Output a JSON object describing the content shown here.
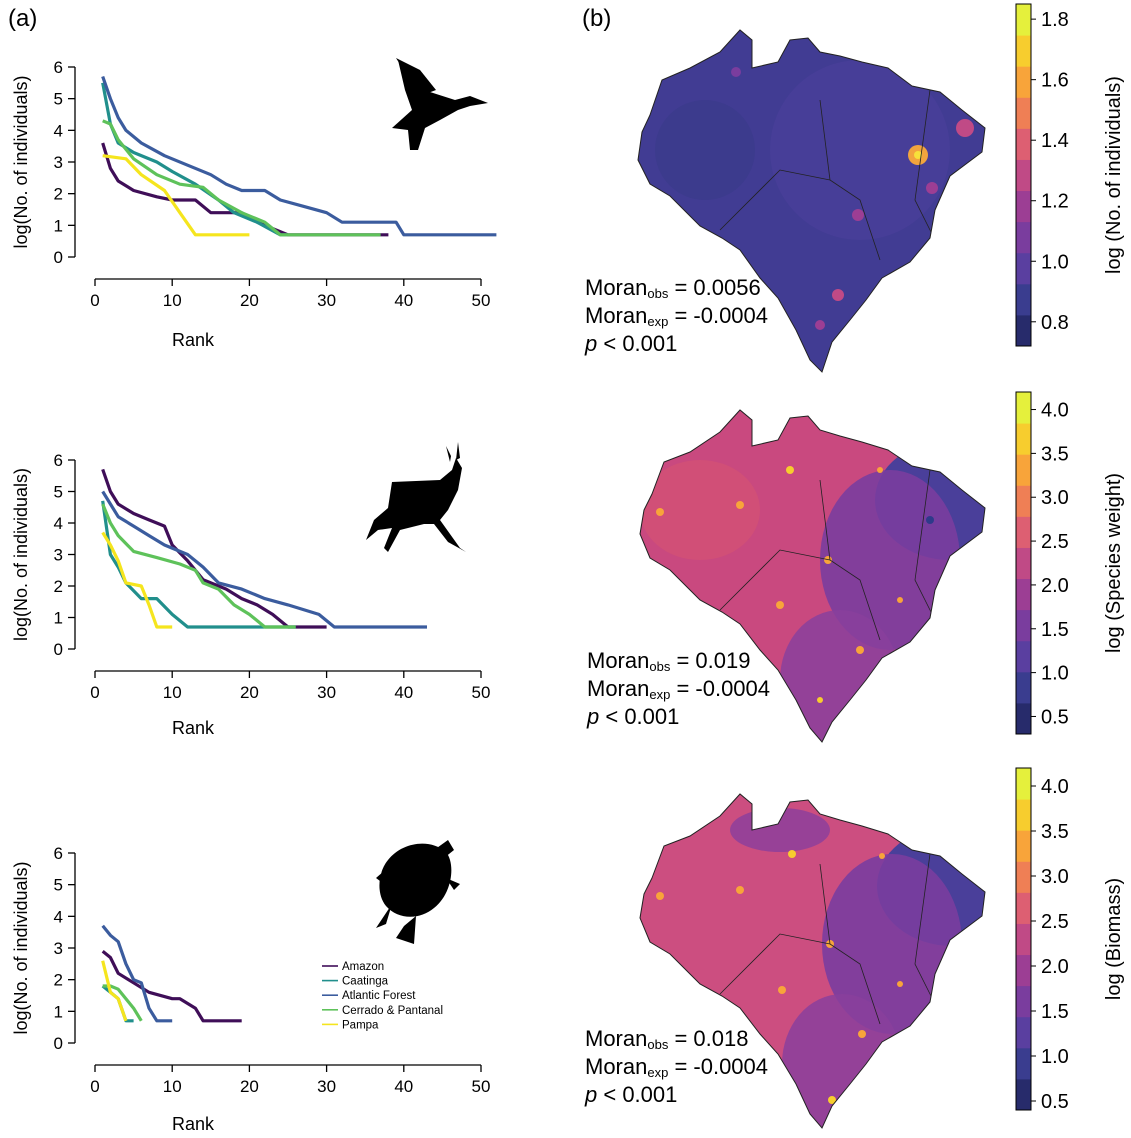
{
  "panel_labels": {
    "a": "(a)",
    "b": "(b)"
  },
  "legend": {
    "entries": [
      {
        "name": "Amazon",
        "color": "#3f0e58"
      },
      {
        "name": "Caatinga",
        "color": "#218f8c"
      },
      {
        "name": "Atlantic Forest",
        "color": "#3b5c9e"
      },
      {
        "name": "Cerrado & Pantanal",
        "color": "#5ec25a"
      },
      {
        "name": "Pampa",
        "color": "#f5e51e"
      }
    ]
  },
  "chart_data": [
    {
      "type": "line",
      "taxon_icon": "bird-silhouette-icon",
      "xlabel": "Rank",
      "ylabel": "log(No. of individuals)",
      "xlim": [
        0,
        52
      ],
      "ylim": [
        0,
        6
      ],
      "xticks": [
        "0",
        "10",
        "20",
        "30",
        "40",
        "50"
      ],
      "yticks": [
        "0",
        "1",
        "2",
        "3",
        "4",
        "5",
        "6"
      ],
      "series": [
        {
          "name": "Amazon",
          "x": [
            1,
            2,
            3,
            5,
            8,
            10,
            13,
            15,
            19,
            21,
            25,
            30,
            35,
            37,
            38
          ],
          "y": [
            3.6,
            2.8,
            2.4,
            2.1,
            1.9,
            1.8,
            1.8,
            1.4,
            1.4,
            1.1,
            0.7,
            0.7,
            0.7,
            0.7,
            0.7
          ]
        },
        {
          "name": "Caatinga",
          "x": [
            1,
            2,
            3,
            5,
            8,
            10,
            13,
            16,
            18,
            21,
            24,
            25
          ],
          "y": [
            5.5,
            4.2,
            3.6,
            3.3,
            3.0,
            2.7,
            2.3,
            1.8,
            1.4,
            1.1,
            0.7,
            0.7
          ]
        },
        {
          "name": "Atlantic Forest",
          "x": [
            1,
            2,
            3,
            4,
            6,
            9,
            12,
            15,
            17,
            19,
            22,
            24,
            27,
            30,
            32,
            36,
            39,
            40,
            52
          ],
          "y": [
            5.7,
            5.0,
            4.4,
            4.0,
            3.6,
            3.2,
            2.9,
            2.6,
            2.3,
            2.1,
            2.1,
            1.8,
            1.6,
            1.4,
            1.1,
            1.1,
            1.1,
            0.7,
            0.7
          ]
        },
        {
          "name": "Cerrado & Pantanal",
          "x": [
            1,
            2,
            3,
            5,
            8,
            11,
            14,
            16,
            19,
            22,
            24,
            30,
            37
          ],
          "y": [
            4.3,
            4.2,
            3.7,
            3.1,
            2.6,
            2.3,
            2.2,
            1.8,
            1.4,
            1.1,
            0.7,
            0.7,
            0.7
          ]
        },
        {
          "name": "Pampa",
          "x": [
            1,
            4,
            6,
            9,
            11,
            13,
            16,
            20
          ],
          "y": [
            3.2,
            3.1,
            2.6,
            2.1,
            1.4,
            0.7,
            0.7,
            0.7
          ]
        }
      ]
    },
    {
      "type": "line",
      "taxon_icon": "deer-silhouette-icon",
      "xlabel": "Rank",
      "ylabel": "log(No. of individuals)",
      "xlim": [
        0,
        52
      ],
      "ylim": [
        0,
        6
      ],
      "xticks": [
        "0",
        "10",
        "20",
        "30",
        "40",
        "50"
      ],
      "yticks": [
        "0",
        "1",
        "2",
        "3",
        "4",
        "5",
        "6"
      ],
      "series": [
        {
          "name": "Amazon",
          "x": [
            1,
            2,
            3,
            5,
            7,
            9,
            10,
            12,
            14,
            17,
            19,
            21,
            23,
            25,
            27,
            30
          ],
          "y": [
            5.7,
            5.0,
            4.6,
            4.3,
            4.1,
            3.9,
            3.3,
            2.8,
            2.2,
            1.9,
            1.6,
            1.4,
            1.1,
            0.7,
            0.7,
            0.7
          ]
        },
        {
          "name": "Caatinga",
          "x": [
            1,
            2,
            3,
            4,
            6,
            8,
            10,
            12,
            15,
            20,
            26
          ],
          "y": [
            4.7,
            3.0,
            2.6,
            2.1,
            1.6,
            1.6,
            1.1,
            0.7,
            0.7,
            0.7,
            0.7
          ]
        },
        {
          "name": "Atlantic Forest",
          "x": [
            1,
            3,
            5,
            7,
            9,
            12,
            14,
            16,
            19,
            22,
            25,
            29,
            31,
            43
          ],
          "y": [
            5.0,
            4.2,
            3.9,
            3.6,
            3.3,
            3.0,
            2.6,
            2.1,
            1.9,
            1.6,
            1.4,
            1.1,
            0.7,
            0.7
          ]
        },
        {
          "name": "Cerrado & Pantanal",
          "x": [
            1,
            2,
            3,
            5,
            8,
            11,
            13,
            14,
            16,
            18,
            20,
            21,
            22,
            26
          ],
          "y": [
            4.6,
            4.0,
            3.6,
            3.1,
            2.9,
            2.7,
            2.5,
            2.1,
            1.9,
            1.4,
            1.1,
            0.9,
            0.7,
            0.7
          ]
        },
        {
          "name": "Pampa",
          "x": [
            1,
            2,
            3,
            4,
            6,
            7,
            8,
            10
          ],
          "y": [
            3.7,
            3.3,
            2.8,
            2.1,
            2.0,
            1.4,
            0.7,
            0.7
          ]
        }
      ]
    },
    {
      "type": "line",
      "taxon_icon": "turtle-silhouette-icon",
      "xlabel": "Rank",
      "ylabel": "log(No. of individuals)",
      "xlim": [
        0,
        52
      ],
      "ylim": [
        0,
        6
      ],
      "xticks": [
        "0",
        "10",
        "20",
        "30",
        "40",
        "50"
      ],
      "yticks": [
        "0",
        "1",
        "2",
        "3",
        "4",
        "5",
        "6"
      ],
      "series": [
        {
          "name": "Amazon",
          "x": [
            1,
            2,
            3,
            5,
            7,
            10,
            11,
            13,
            14,
            16,
            19
          ],
          "y": [
            2.9,
            2.7,
            2.2,
            1.9,
            1.6,
            1.4,
            1.4,
            1.1,
            0.7,
            0.7,
            0.7
          ]
        },
        {
          "name": "Caatinga",
          "x": [
            1,
            2,
            3,
            4,
            5
          ],
          "y": [
            1.8,
            1.6,
            1.4,
            0.7,
            0.7
          ]
        },
        {
          "name": "Atlantic Forest",
          "x": [
            1,
            2,
            3,
            4,
            5,
            6,
            7,
            8,
            10
          ],
          "y": [
            3.7,
            3.4,
            3.2,
            2.5,
            2.0,
            1.9,
            1.1,
            0.7,
            0.7
          ]
        },
        {
          "name": "Cerrado & Pantanal",
          "x": [
            1,
            2,
            3,
            4,
            5,
            6
          ],
          "y": [
            1.8,
            1.8,
            1.7,
            1.4,
            1.1,
            0.7
          ]
        },
        {
          "name": "Pampa",
          "x": [
            1,
            2,
            3,
            4
          ],
          "y": [
            2.6,
            1.6,
            1.4,
            0.7
          ]
        }
      ]
    },
    {
      "type": "heatmap",
      "map_icon": "brazil-map-individuals",
      "colorbar_label": "log (No. of individuals)",
      "colorbar_ticks": [
        "0.8",
        "1.0",
        "1.2",
        "1.4",
        "1.6",
        "1.8"
      ],
      "colorbar_range": [
        0.72,
        1.85
      ],
      "stat_lines": [
        {
          "base": "Moran",
          "sub": "obs",
          "rest": " = 0.0056"
        },
        {
          "base": "Moran",
          "sub": "exp",
          "rest": " = -0.0004"
        },
        {
          "italic": "p",
          "rest": " < 0.001"
        }
      ]
    },
    {
      "type": "heatmap",
      "map_icon": "brazil-map-species-weight",
      "colorbar_label": "log (Species weight)",
      "colorbar_ticks": [
        "0.5",
        "1.0",
        "1.5",
        "2.0",
        "2.5",
        "3.0",
        "3.5",
        "4.0"
      ],
      "colorbar_range": [
        0.3,
        4.2
      ],
      "stat_lines": [
        {
          "base": "Moran",
          "sub": "obs",
          "rest": " = 0.019"
        },
        {
          "base": "Moran",
          "sub": "exp",
          "rest": " = -0.0004"
        },
        {
          "italic": "p",
          "rest": " < 0.001"
        }
      ]
    },
    {
      "type": "heatmap",
      "map_icon": "brazil-map-biomass",
      "colorbar_label": "log (Biomass)",
      "colorbar_ticks": [
        "0.5",
        "1.0",
        "1.5",
        "2.0",
        "2.5",
        "3.0",
        "3.5",
        "4.0"
      ],
      "colorbar_range": [
        0.4,
        4.2
      ],
      "stat_lines": [
        {
          "base": "Moran",
          "sub": "obs",
          "rest": " = 0.018"
        },
        {
          "base": "Moran",
          "sub": "exp",
          "rest": " = -0.0004"
        },
        {
          "italic": "p",
          "rest": " < 0.001"
        }
      ]
    }
  ],
  "colors": {
    "colorbar_palette": [
      "#272b6b",
      "#3a3d8f",
      "#5a3fa0",
      "#7a3d9e",
      "#9c3e94",
      "#c04a86",
      "#dd5f72",
      "#ef7f55",
      "#f8a43a",
      "#f7cd2e",
      "#e5f03c"
    ],
    "map_base_individuals": "#413c93",
    "map_base_weight": "#c9497f",
    "map_base_biomass": "#cc4e80",
    "map_east_low": "#4a3f9a"
  }
}
